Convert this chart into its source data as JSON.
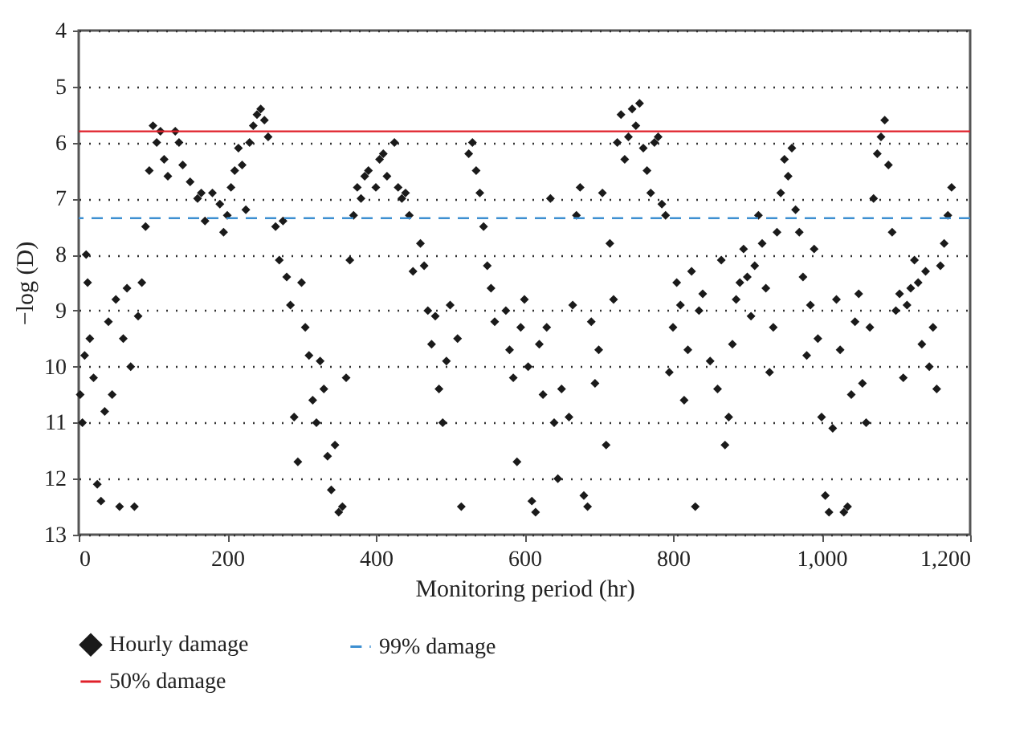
{
  "chart_data": {
    "type": "scatter",
    "xlabel": "Monitoring period (hr)",
    "ylabel": "−log (D)",
    "xlim": [
      0,
      1200
    ],
    "xticks": [
      0,
      200,
      400,
      600,
      800,
      {
        "value": 1000,
        "label": "1,000"
      },
      {
        "value": 1200,
        "label": "1,200"
      }
    ],
    "ylim": [
      13,
      4
    ],
    "yticks": [
      4,
      5,
      6,
      7,
      8,
      9,
      10,
      11,
      12,
      13
    ],
    "grid": "y",
    "legend": "bottom",
    "marker": "diamond",
    "series": [
      {
        "name": "Hourly damage",
        "color": "#1a1a1a",
        "x": [
          2,
          5,
          8,
          10,
          12,
          15,
          20,
          25,
          30,
          35,
          40,
          45,
          50,
          55,
          60,
          65,
          70,
          75,
          80,
          85,
          90,
          95,
          100,
          105,
          110,
          115,
          120,
          130,
          135,
          140,
          150,
          160,
          165,
          170,
          180,
          190,
          195,
          200,
          205,
          210,
          215,
          220,
          225,
          230,
          235,
          240,
          245,
          250,
          255,
          265,
          270,
          275,
          280,
          285,
          290,
          295,
          300,
          305,
          310,
          315,
          320,
          325,
          330,
          335,
          340,
          345,
          350,
          355,
          360,
          365,
          370,
          375,
          380,
          385,
          390,
          400,
          405,
          410,
          415,
          425,
          430,
          435,
          440,
          445,
          450,
          460,
          465,
          470,
          475,
          480,
          485,
          490,
          495,
          500,
          510,
          515,
          525,
          530,
          535,
          540,
          545,
          550,
          555,
          560,
          575,
          580,
          585,
          590,
          595,
          600,
          605,
          610,
          615,
          620,
          625,
          630,
          635,
          640,
          645,
          650,
          660,
          665,
          670,
          675,
          680,
          685,
          690,
          695,
          700,
          705,
          710,
          715,
          720,
          725,
          730,
          735,
          740,
          745,
          750,
          755,
          760,
          765,
          770,
          775,
          780,
          785,
          790,
          795,
          800,
          805,
          810,
          815,
          820,
          825,
          830,
          835,
          840,
          850,
          860,
          865,
          870,
          875,
          880,
          885,
          890,
          895,
          900,
          905,
          910,
          915,
          920,
          925,
          930,
          935,
          940,
          945,
          950,
          955,
          960,
          965,
          970,
          975,
          980,
          985,
          990,
          995,
          1000,
          1005,
          1010,
          1015,
          1020,
          1025,
          1030,
          1035,
          1040,
          1045,
          1050,
          1055,
          1060,
          1065,
          1070,
          1075,
          1080,
          1085,
          1090,
          1095,
          1100,
          1105,
          1110,
          1115,
          1120,
          1125,
          1130,
          1135,
          1140,
          1145,
          1150,
          1155,
          1160,
          1165,
          1170,
          1175
        ],
        "values": [
          10.5,
          11,
          9.8,
          8,
          8.5,
          9.5,
          10.2,
          12.1,
          12.4,
          10.8,
          9.2,
          10.5,
          8.8,
          12.5,
          9.5,
          8.6,
          10,
          12.5,
          9.1,
          8.5,
          7.5,
          6.5,
          5.7,
          6,
          5.8,
          6.3,
          6.6,
          5.8,
          6,
          6.4,
          6.7,
          7,
          6.9,
          7.4,
          6.9,
          7.1,
          7.6,
          7.3,
          6.8,
          6.5,
          6.1,
          6.4,
          7.2,
          6,
          5.7,
          5.5,
          5.4,
          5.6,
          5.9,
          7.5,
          8.1,
          7.4,
          8.4,
          8.9,
          10.9,
          11.7,
          8.5,
          9.3,
          9.8,
          10.6,
          11,
          9.9,
          10.4,
          11.6,
          12.2,
          11.4,
          12.6,
          12.5,
          10.2,
          8.1,
          7.3,
          6.8,
          7,
          6.6,
          6.5,
          6.8,
          6.3,
          6.2,
          6.6,
          6,
          6.8,
          7,
          6.9,
          7.3,
          8.3,
          7.8,
          8.2,
          9,
          9.6,
          9.1,
          10.4,
          11,
          9.9,
          8.9,
          9.5,
          12.5,
          6.2,
          6,
          6.5,
          6.9,
          7.5,
          8.2,
          8.6,
          9.2,
          9,
          9.7,
          10.2,
          11.7,
          9.3,
          8.8,
          10,
          12.4,
          12.6,
          9.6,
          10.5,
          9.3,
          7,
          11,
          12,
          10.4,
          10.9,
          8.9,
          7.3,
          6.8,
          12.3,
          12.5,
          9.2,
          10.3,
          9.7,
          6.9,
          11.4,
          7.8,
          8.8,
          6,
          5.5,
          6.3,
          5.9,
          5.4,
          5.7,
          5.3,
          6.1,
          6.5,
          6.9,
          6,
          5.9,
          7.1,
          7.3,
          10.1,
          9.3,
          8.5,
          8.9,
          10.6,
          9.7,
          8.3,
          12.5,
          9,
          8.7,
          9.9,
          10.4,
          8.1,
          11.4,
          10.9,
          9.6,
          8.8,
          8.5,
          7.9,
          8.4,
          9.1,
          8.2,
          7.3,
          7.8,
          8.6,
          10.1,
          9.3,
          7.6,
          6.9,
          6.3,
          6.6,
          6.1,
          7.2,
          7.6,
          8.4,
          9.8,
          8.9,
          7.9,
          9.5,
          10.9,
          12.3,
          12.6,
          11.1,
          8.8,
          9.7,
          12.6,
          12.5,
          10.5,
          9.2,
          8.7,
          10.3,
          11,
          9.3,
          7,
          6.2,
          5.9,
          5.6,
          6.4,
          7.6,
          9,
          8.7,
          10.2,
          8.9,
          8.6,
          8.1,
          8.5,
          9.6,
          8.3,
          10,
          9.3,
          10.4,
          8.2,
          7.8,
          7.3,
          6.8
        ]
      }
    ],
    "ref_lines": [
      {
        "axis": "y",
        "value": 7.35,
        "label": "99% damage",
        "color": "#3d8fd1",
        "line_style": "dashed"
      },
      {
        "axis": "y",
        "value": 5.8,
        "label": "50% damage",
        "color": "#e0202a",
        "line_style": "solid"
      }
    ]
  }
}
